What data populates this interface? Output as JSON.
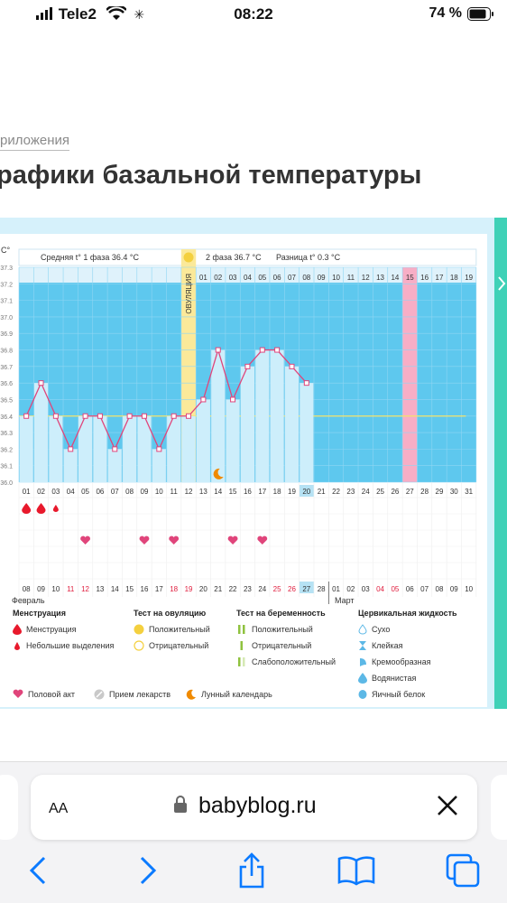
{
  "status": {
    "carrier": "Tele2",
    "time": "08:22",
    "battery": "74 %"
  },
  "breadcrumb": "риложения",
  "title": "рафики базальной температуры",
  "chart": {
    "avg_phase1": "Средняя t° 1 фаза 36.4 °C",
    "phase2": "2 фаза 36.7 °C",
    "diff": "Разница t° 0.3 °C",
    "ovulation_label": "ОВУЛЯЦИЯ",
    "unit": "С°",
    "y_ticks": [
      "37.3",
      "37.2",
      "37.1",
      "37.0",
      "36.9",
      "36.8",
      "36.7",
      "36.6",
      "36.5",
      "36.4",
      "36.3",
      "36.2",
      "36.1",
      "36.0"
    ],
    "top_days": [
      "",
      "",
      "",
      "",
      "",
      "",
      "",
      "",
      "",
      "",
      "",
      "",
      "01",
      "02",
      "03",
      "04",
      "05",
      "06",
      "07",
      "08",
      "09",
      "10",
      "11",
      "12",
      "13",
      "14",
      "15",
      "16",
      "17",
      "18",
      "19"
    ],
    "cycle_days": [
      "01",
      "02",
      "03",
      "04",
      "05",
      "06",
      "07",
      "08",
      "09",
      "10",
      "11",
      "12",
      "13",
      "14",
      "15",
      "16",
      "17",
      "18",
      "19",
      "20",
      "21",
      "22",
      "23",
      "24",
      "25",
      "26",
      "27",
      "28",
      "29",
      "30",
      "31"
    ],
    "dates": [
      "08",
      "09",
      "10",
      "11",
      "12",
      "13",
      "14",
      "15",
      "16",
      "17",
      "18",
      "19",
      "20",
      "21",
      "22",
      "23",
      "24",
      "25",
      "26",
      "27",
      "28",
      "01",
      "02",
      "03",
      "04",
      "05",
      "06",
      "07",
      "08",
      "09",
      "10"
    ],
    "month_feb": "Февраль",
    "month_mar": "Март"
  },
  "chart_data": {
    "type": "line",
    "title": "",
    "xlabel": "",
    "ylabel": "С°",
    "x": [
      1,
      2,
      3,
      4,
      5,
      6,
      7,
      8,
      9,
      10,
      11,
      12,
      13,
      14,
      15,
      16,
      17,
      18,
      19,
      20
    ],
    "series": [
      {
        "values": [
          36.4,
          36.6,
          36.4,
          36.2,
          36.4,
          36.4,
          36.2,
          36.4,
          36.4,
          36.2,
          36.4,
          36.4,
          36.5,
          36.8,
          36.5,
          36.7,
          36.8,
          36.8,
          36.7,
          36.6
        ]
      }
    ],
    "ylim": [
      36.0,
      37.3
    ],
    "baseline": 36.4,
    "ovulation_day": 12,
    "highlight_day": 27,
    "menstruation_days": [
      1,
      2
    ],
    "light_discharge_days": [
      3
    ],
    "intercourse_days": [
      5,
      9,
      11,
      15,
      17
    ],
    "moon_day": 14
  },
  "legend": {
    "menstruation": {
      "title": "Менструация",
      "items": [
        "Менструация",
        "Небольшие выделения"
      ]
    },
    "ovulation_test": {
      "title": "Тест на овуляцию",
      "items": [
        "Положительный",
        "Отрицательный"
      ]
    },
    "pregnancy_test": {
      "title": "Тест на беременность",
      "items": [
        "Положительный",
        "Отрицательный",
        "Слабоположительный"
      ]
    },
    "cervical": {
      "title": "Цервикальная жидкость",
      "items": [
        "Сухо",
        "Клейкая",
        "Кремообразная",
        "Водянистая",
        "Яичный белок"
      ]
    },
    "bottom": [
      "Половой акт",
      "Прием лекарств",
      "Лунный календарь"
    ]
  },
  "browser": {
    "aa": "AA",
    "url": "babyblog.ru"
  },
  "colors": {
    "accent": "#e0457b",
    "plot_bg": "#5ec8ee",
    "bar": "#cdeefb",
    "ovulation": "#fbe99a",
    "pink_col": "#f7aec6",
    "teal": "#3fd1b7",
    "ios_blue": "#0a7aff"
  }
}
